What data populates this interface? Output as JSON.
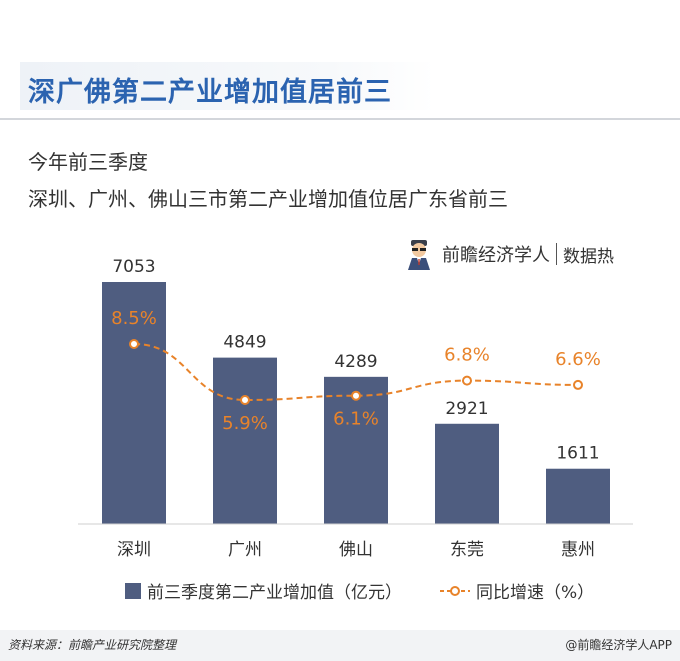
{
  "header": {
    "title": "深广佛第二产业增加值居前三",
    "subtitle_line1": "今年前三季度",
    "subtitle_line2": "深圳、广州、佛山三市第二产业增加值位居广东省前三"
  },
  "brand": {
    "name": "前瞻经济学人",
    "sub": "数据热"
  },
  "chart_data": {
    "type": "bar",
    "categories": [
      "深圳",
      "广州",
      "佛山",
      "东莞",
      "惠州"
    ],
    "series": [
      {
        "name": "前三季度第二产业增加值（亿元）",
        "type": "bar",
        "values": [
          7053,
          4849,
          4289,
          2921,
          1611
        ],
        "color": "#4f5d80"
      },
      {
        "name": "同比增速（%）",
        "type": "line",
        "values": [
          8.5,
          5.9,
          6.1,
          6.8,
          6.6
        ],
        "value_labels": [
          "8.5%",
          "5.9%",
          "6.1%",
          "6.8%",
          "6.6%"
        ],
        "color": "#e8832a"
      }
    ],
    "legend_position": "bottom",
    "grid": false
  },
  "legend": {
    "bar_label": "前三季度第二产业增加值（亿元）",
    "line_label": "同比增速（%）"
  },
  "footer": {
    "source": "资料来源：前瞻产业研究院整理",
    "credit": "@前瞻经济学人APP"
  }
}
